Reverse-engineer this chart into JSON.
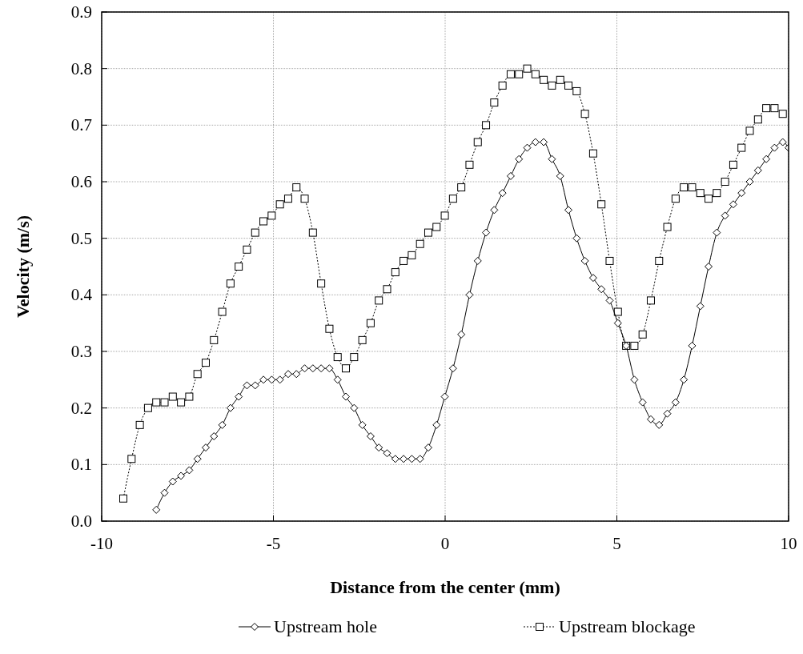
{
  "chart_data": {
    "type": "line",
    "xlabel": "Distance from the center (mm)",
    "ylabel": "Velocity (m/s)",
    "xlim": [
      -10,
      10
    ],
    "xticks": [
      -10,
      -5,
      0,
      5,
      10
    ],
    "ylim": [
      0,
      0.9
    ],
    "yticks": [
      {
        "value": 0,
        "label": "0.0"
      },
      0.1,
      0.2,
      0.3,
      0.4,
      0.5,
      0.6,
      0.7,
      0.8,
      0.9
    ],
    "grid": true,
    "legend": "bottom",
    "series": [
      {
        "name": "Upstream hole",
        "color": "#000000",
        "marker": "diamond",
        "line_style": "solid",
        "x": [
          -8.41,
          -8.17,
          -7.93,
          -7.69,
          -7.45,
          -7.21,
          -6.97,
          -6.73,
          -6.49,
          -6.25,
          -6.01,
          -5.77,
          -5.53,
          -5.29,
          -5.05,
          -4.81,
          -4.57,
          -4.33,
          -4.09,
          -3.85,
          -3.61,
          -3.37,
          -3.13,
          -2.89,
          -2.65,
          -2.41,
          -2.17,
          -1.93,
          -1.69,
          -1.45,
          -1.21,
          -0.97,
          -0.73,
          -0.49,
          -0.25,
          -0.01,
          0.23,
          0.47,
          0.71,
          0.95,
          1.19,
          1.43,
          1.67,
          1.91,
          2.15,
          2.39,
          2.63,
          2.87,
          3.11,
          3.35,
          3.59,
          3.83,
          4.07,
          4.31,
          4.55,
          4.79,
          5.03,
          5.27,
          5.51,
          5.75,
          5.99,
          6.23,
          6.47,
          6.71,
          6.95,
          7.19,
          7.43,
          7.67,
          7.91,
          8.15,
          8.39,
          8.63,
          8.87,
          9.11,
          9.35,
          9.59,
          9.83,
          10
        ],
        "values": [
          0.02,
          0.05,
          0.07,
          0.08,
          0.09,
          0.11,
          0.13,
          0.15,
          0.17,
          0.2,
          0.22,
          0.24,
          0.24,
          0.25,
          0.25,
          0.25,
          0.26,
          0.26,
          0.27,
          0.27,
          0.27,
          0.27,
          0.25,
          0.22,
          0.2,
          0.17,
          0.15,
          0.13,
          0.12,
          0.11,
          0.11,
          0.11,
          0.11,
          0.13,
          0.17,
          0.22,
          0.27,
          0.33,
          0.4,
          0.46,
          0.51,
          0.55,
          0.58,
          0.61,
          0.64,
          0.66,
          0.67,
          0.67,
          0.64,
          0.61,
          0.55,
          0.5,
          0.46,
          0.43,
          0.41,
          0.39,
          0.35,
          0.31,
          0.25,
          0.21,
          0.18,
          0.17,
          0.19,
          0.21,
          0.25,
          0.31,
          0.38,
          0.45,
          0.51,
          0.54,
          0.56,
          0.58,
          0.6,
          0.62,
          0.64,
          0.66,
          0.67,
          0.66
        ]
      },
      {
        "name": "Upstream blockage",
        "color": "#000000",
        "marker": "square",
        "line_style": "dotted",
        "x": [
          -9.37,
          -9.13,
          -8.89,
          -8.65,
          -8.41,
          -8.17,
          -7.93,
          -7.69,
          -7.45,
          -7.21,
          -6.97,
          -6.73,
          -6.49,
          -6.25,
          -6.01,
          -5.77,
          -5.53,
          -5.29,
          -5.05,
          -4.81,
          -4.57,
          -4.33,
          -4.09,
          -3.85,
          -3.61,
          -3.37,
          -3.13,
          -2.89,
          -2.65,
          -2.41,
          -2.17,
          -1.93,
          -1.69,
          -1.45,
          -1.21,
          -0.97,
          -0.73,
          -0.49,
          -0.25,
          -0.01,
          0.23,
          0.47,
          0.71,
          0.95,
          1.19,
          1.43,
          1.67,
          1.91,
          2.15,
          2.39,
          2.63,
          2.87,
          3.11,
          3.35,
          3.59,
          3.83,
          4.07,
          4.31,
          4.55,
          4.79,
          5.03,
          5.27,
          5.51,
          5.75,
          5.99,
          6.23,
          6.47,
          6.71,
          6.95,
          7.19,
          7.43,
          7.67,
          7.91,
          8.15,
          8.39,
          8.63,
          8.87,
          9.11,
          9.35,
          9.59,
          9.83
        ],
        "values": [
          0.04,
          0.11,
          0.17,
          0.2,
          0.21,
          0.21,
          0.22,
          0.21,
          0.22,
          0.26,
          0.28,
          0.32,
          0.37,
          0.42,
          0.45,
          0.48,
          0.51,
          0.53,
          0.54,
          0.56,
          0.57,
          0.59,
          0.57,
          0.51,
          0.42,
          0.34,
          0.29,
          0.27,
          0.29,
          0.32,
          0.35,
          0.39,
          0.41,
          0.44,
          0.46,
          0.47,
          0.49,
          0.51,
          0.52,
          0.54,
          0.57,
          0.59,
          0.63,
          0.67,
          0.7,
          0.74,
          0.77,
          0.79,
          0.79,
          0.8,
          0.79,
          0.78,
          0.77,
          0.78,
          0.77,
          0.76,
          0.72,
          0.65,
          0.56,
          0.46,
          0.37,
          0.31,
          0.31,
          0.33,
          0.39,
          0.46,
          0.52,
          0.57,
          0.59,
          0.59,
          0.58,
          0.57,
          0.58,
          0.6,
          0.63,
          0.66,
          0.69,
          0.71,
          0.73,
          0.73,
          0.72
        ]
      }
    ]
  }
}
